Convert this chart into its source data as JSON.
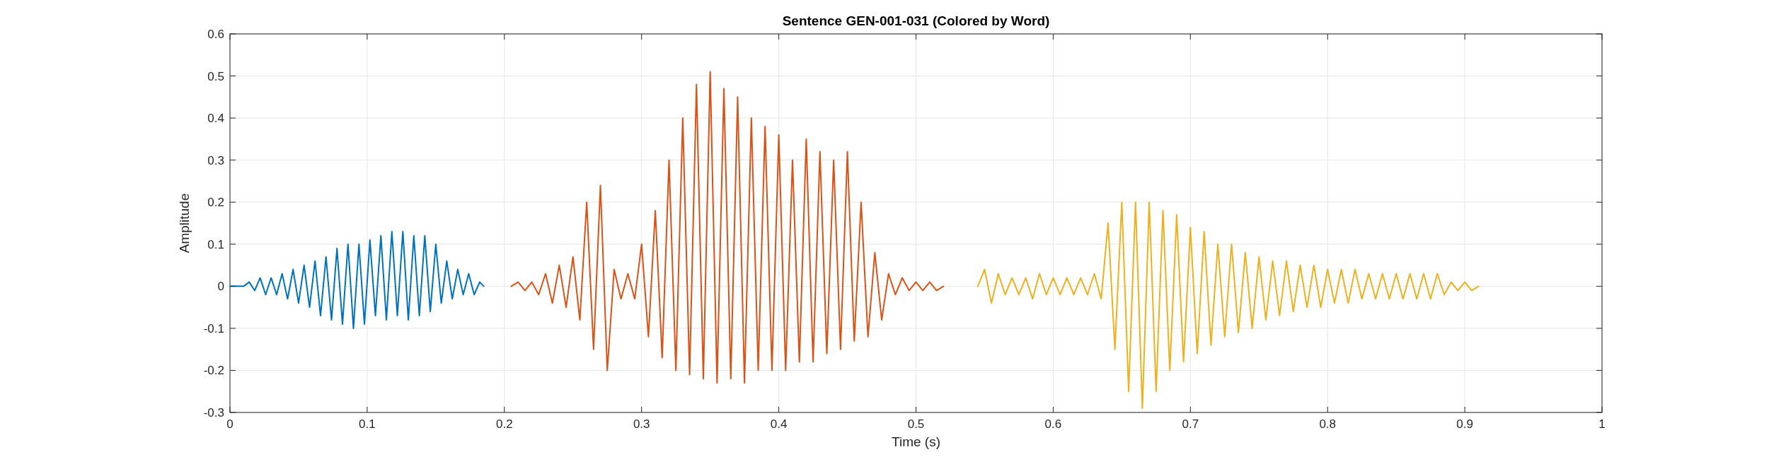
{
  "chart_data": {
    "type": "line",
    "title": "Sentence GEN-001-031 (Colored by Word)",
    "xlabel": "Time (s)",
    "ylabel": "Amplitude",
    "xlim": [
      0,
      1
    ],
    "ylim": [
      -0.3,
      0.6
    ],
    "xticks": [
      0,
      0.1,
      0.2,
      0.3,
      0.4,
      0.5,
      0.6,
      0.7,
      0.8,
      0.9,
      1
    ],
    "yticks": [
      -0.3,
      -0.2,
      -0.1,
      0,
      0.1,
      0.2,
      0.3,
      0.4,
      0.5,
      0.6
    ],
    "grid": true,
    "line_style": "solid",
    "marker": "none",
    "series": [
      {
        "color": "#0072bd",
        "x": [
          0,
          0.01,
          0.014,
          0.018,
          0.022,
          0.026,
          0.03,
          0.034,
          0.038,
          0.042,
          0.046,
          0.05,
          0.054,
          0.058,
          0.062,
          0.066,
          0.07,
          0.074,
          0.078,
          0.082,
          0.086,
          0.09,
          0.094,
          0.098,
          0.102,
          0.106,
          0.11,
          0.114,
          0.118,
          0.122,
          0.126,
          0.13,
          0.134,
          0.138,
          0.142,
          0.146,
          0.15,
          0.154,
          0.158,
          0.162,
          0.166,
          0.17,
          0.174,
          0.178,
          0.182,
          0.185
        ],
        "values": [
          0,
          0,
          0.01,
          -0.01,
          0.02,
          -0.02,
          0.02,
          -0.02,
          0.03,
          -0.03,
          0.04,
          -0.04,
          0.05,
          -0.05,
          0.06,
          -0.07,
          0.07,
          -0.08,
          0.09,
          -0.09,
          0.1,
          -0.1,
          0.1,
          -0.09,
          0.11,
          -0.07,
          0.12,
          -0.08,
          0.13,
          -0.07,
          0.13,
          -0.08,
          0.12,
          -0.07,
          0.12,
          -0.06,
          0.1,
          -0.04,
          0.06,
          -0.03,
          0.04,
          -0.02,
          0.03,
          -0.02,
          0.01,
          0
        ]
      },
      {
        "color": "#d95319",
        "x": [
          0.205,
          0.21,
          0.215,
          0.22,
          0.225,
          0.23,
          0.235,
          0.24,
          0.245,
          0.25,
          0.255,
          0.26,
          0.265,
          0.27,
          0.275,
          0.28,
          0.285,
          0.29,
          0.295,
          0.3,
          0.305,
          0.31,
          0.315,
          0.32,
          0.325,
          0.33,
          0.335,
          0.34,
          0.345,
          0.35,
          0.355,
          0.36,
          0.365,
          0.37,
          0.375,
          0.38,
          0.385,
          0.39,
          0.395,
          0.4,
          0.405,
          0.41,
          0.415,
          0.42,
          0.425,
          0.43,
          0.435,
          0.44,
          0.445,
          0.45,
          0.455,
          0.46,
          0.465,
          0.47,
          0.475,
          0.48,
          0.485,
          0.49,
          0.495,
          0.5,
          0.505,
          0.51,
          0.515,
          0.52
        ],
        "values": [
          0,
          0.01,
          -0.01,
          0.01,
          -0.02,
          0.03,
          -0.04,
          0.05,
          -0.05,
          0.07,
          -0.08,
          0.2,
          -0.15,
          0.24,
          -0.2,
          0.04,
          -0.03,
          0.03,
          -0.03,
          0.1,
          -0.12,
          0.18,
          -0.17,
          0.3,
          -0.2,
          0.4,
          -0.21,
          0.48,
          -0.22,
          0.51,
          -0.23,
          0.47,
          -0.22,
          0.45,
          -0.23,
          0.4,
          -0.2,
          0.38,
          -0.2,
          0.36,
          -0.2,
          0.3,
          -0.18,
          0.35,
          -0.18,
          0.32,
          -0.16,
          0.3,
          -0.15,
          0.32,
          -0.13,
          0.2,
          -0.12,
          0.08,
          -0.08,
          0.03,
          -0.02,
          0.02,
          -0.01,
          0.01,
          -0.01,
          0.01,
          -0.01,
          0
        ]
      },
      {
        "color": "#edb120",
        "x": [
          0.545,
          0.55,
          0.555,
          0.56,
          0.565,
          0.57,
          0.575,
          0.58,
          0.585,
          0.59,
          0.595,
          0.6,
          0.605,
          0.61,
          0.615,
          0.62,
          0.625,
          0.63,
          0.635,
          0.64,
          0.645,
          0.65,
          0.655,
          0.66,
          0.665,
          0.67,
          0.675,
          0.68,
          0.685,
          0.69,
          0.695,
          0.7,
          0.705,
          0.71,
          0.715,
          0.72,
          0.725,
          0.73,
          0.735,
          0.74,
          0.745,
          0.75,
          0.755,
          0.76,
          0.765,
          0.77,
          0.775,
          0.78,
          0.785,
          0.79,
          0.795,
          0.8,
          0.805,
          0.81,
          0.815,
          0.82,
          0.825,
          0.83,
          0.835,
          0.84,
          0.845,
          0.85,
          0.855,
          0.86,
          0.865,
          0.87,
          0.875,
          0.88,
          0.885,
          0.89,
          0.895,
          0.9,
          0.905,
          0.91
        ],
        "values": [
          0,
          0.04,
          -0.04,
          0.03,
          -0.02,
          0.02,
          -0.02,
          0.02,
          -0.03,
          0.03,
          -0.02,
          0.02,
          -0.02,
          0.02,
          -0.02,
          0.02,
          -0.02,
          0.03,
          -0.03,
          0.15,
          -0.15,
          0.2,
          -0.25,
          0.2,
          -0.29,
          0.2,
          -0.25,
          0.18,
          -0.2,
          0.17,
          -0.18,
          0.14,
          -0.16,
          0.13,
          -0.14,
          0.1,
          -0.12,
          0.1,
          -0.11,
          0.08,
          -0.1,
          0.07,
          -0.08,
          0.06,
          -0.07,
          0.06,
          -0.06,
          0.05,
          -0.05,
          0.05,
          -0.05,
          0.04,
          -0.04,
          0.04,
          -0.04,
          0.04,
          -0.03,
          0.03,
          -0.03,
          0.03,
          -0.03,
          0.03,
          -0.03,
          0.03,
          -0.03,
          0.03,
          -0.03,
          0.03,
          -0.02,
          0.01,
          -0.01,
          0.01,
          -0.01,
          0
        ]
      }
    ]
  }
}
